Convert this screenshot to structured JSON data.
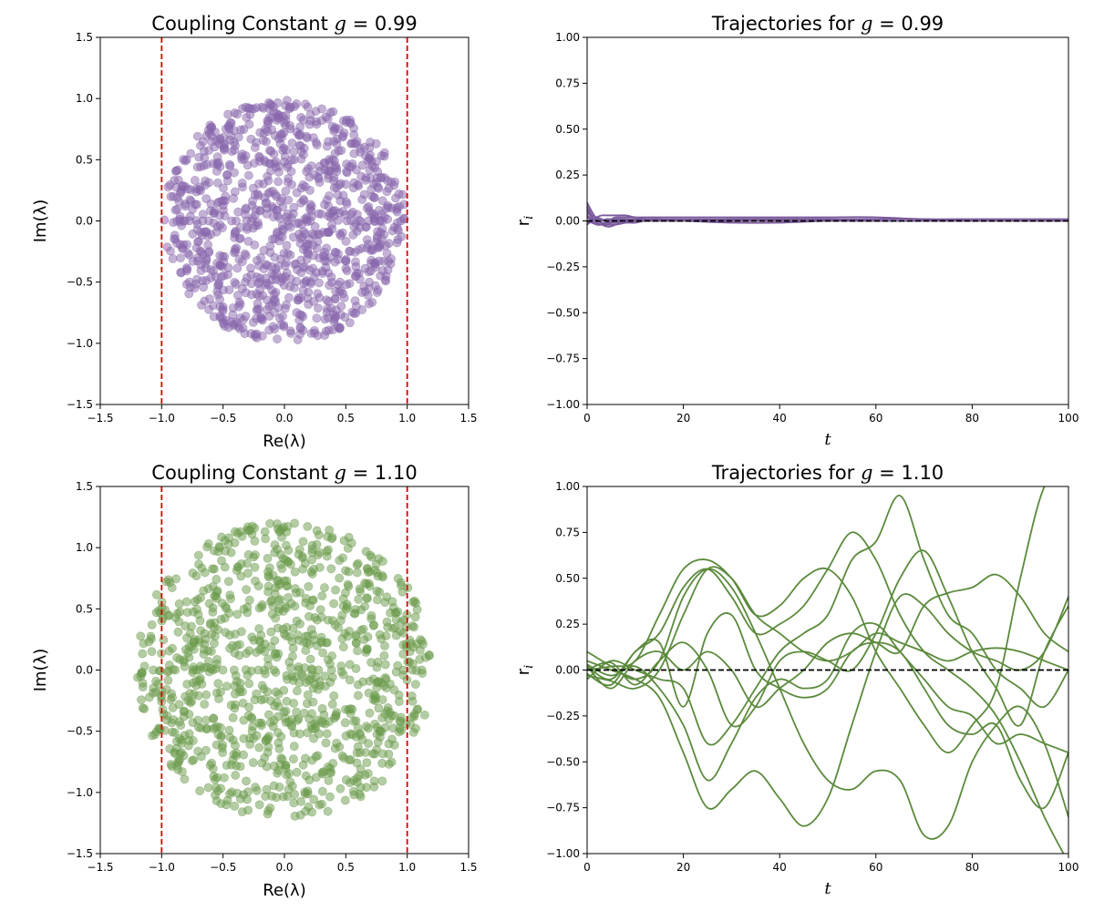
{
  "chart_data": [
    {
      "type": "scatter",
      "title_prefix": "Coupling Constant ",
      "title_var": "g",
      "title_eq": " = ",
      "title_value": "0.99",
      "xlabel": "Re(λ)",
      "ylabel": "Im(λ)",
      "xlim": [
        -1.5,
        1.5
      ],
      "ylim": [
        -1.5,
        1.5
      ],
      "xticks": [
        -1.5,
        -1.0,
        -0.5,
        0.0,
        0.5,
        1.0,
        1.5
      ],
      "yticks": [
        -1.5,
        -1.0,
        -0.5,
        0.0,
        0.5,
        1.0,
        1.5
      ],
      "xtick_labels": [
        "−1.5",
        "−1.0",
        "−0.5",
        "0.0",
        "0.5",
        "1.0",
        "1.5"
      ],
      "ytick_labels": [
        "−1.5",
        "−1.0",
        "−0.5",
        "0.0",
        "0.5",
        "1.0",
        "1.5"
      ],
      "point_color": "#8766ac",
      "point_count": 1000,
      "disk_radius": 0.99,
      "reference_lines_x": [
        -1.0,
        1.0
      ],
      "reference_line_color": "#dd0000",
      "grid": false
    },
    {
      "type": "line",
      "title_prefix": "Trajectories for ",
      "title_var": "g",
      "title_eq": " = ",
      "title_value": "0.99",
      "xlabel": "t",
      "ylabel": "r",
      "ylabel_sub": "i",
      "xlim": [
        0,
        100
      ],
      "ylim": [
        -1.0,
        1.0
      ],
      "xticks": [
        0,
        20,
        40,
        60,
        80,
        100
      ],
      "yticks": [
        -1.0,
        -0.75,
        -0.5,
        -0.25,
        0.0,
        0.25,
        0.5,
        0.75,
        1.0
      ],
      "xtick_labels": [
        "0",
        "20",
        "40",
        "60",
        "80",
        "100"
      ],
      "ytick_labels": [
        "−1.00",
        "−0.75",
        "−0.50",
        "−0.25",
        "0.00",
        "0.25",
        "0.50",
        "0.75",
        "1.00"
      ],
      "line_color": "#7a5a9c",
      "baseline": 0.0,
      "baseline_color": "#000000",
      "x": [
        0,
        1,
        2,
        3,
        4,
        5,
        6,
        8,
        10,
        12,
        15,
        20,
        30,
        40,
        50,
        60,
        70,
        80,
        90,
        100
      ],
      "series": [
        {
          "values": [
            0.1,
            0.05,
            0.01,
            -0.01,
            -0.01,
            0.0,
            0.01,
            0.01,
            0.0,
            0.0,
            0.0,
            0.0,
            0.0,
            0.0,
            0.0,
            0.0,
            0.0,
            0.0,
            0.0,
            0.0
          ]
        },
        {
          "values": [
            0.08,
            0.03,
            -0.01,
            -0.02,
            -0.03,
            -0.03,
            -0.02,
            -0.01,
            0.0,
            0.0,
            0.0,
            0.0,
            0.0,
            0.0,
            0.0,
            0.0,
            0.0,
            0.0,
            0.0,
            0.0
          ]
        },
        {
          "values": [
            0.05,
            0.02,
            0.0,
            -0.01,
            -0.02,
            -0.02,
            -0.02,
            -0.01,
            -0.01,
            0.0,
            0.0,
            0.0,
            -0.01,
            -0.01,
            0.0,
            0.0,
            0.0,
            0.0,
            0.0,
            0.0
          ]
        },
        {
          "values": [
            -0.02,
            0.0,
            0.02,
            0.03,
            0.03,
            0.03,
            0.03,
            0.03,
            0.02,
            0.02,
            0.02,
            0.02,
            0.02,
            0.02,
            0.02,
            0.02,
            0.01,
            0.01,
            0.01,
            0.01
          ]
        },
        {
          "values": [
            0.03,
            0.01,
            0.0,
            0.0,
            0.01,
            0.01,
            0.02,
            0.02,
            0.02,
            0.01,
            0.01,
            0.0,
            0.01,
            0.01,
            0.01,
            0.01,
            0.01,
            0.0,
            0.0,
            0.0
          ]
        },
        {
          "values": [
            0.06,
            0.02,
            -0.01,
            -0.02,
            -0.02,
            -0.01,
            0.0,
            0.01,
            0.01,
            0.01,
            0.01,
            0.01,
            0.01,
            0.01,
            0.01,
            0.0,
            0.0,
            0.0,
            0.0,
            0.0
          ]
        },
        {
          "values": [
            -0.01,
            0.0,
            0.01,
            0.01,
            0.0,
            -0.01,
            -0.01,
            0.0,
            0.0,
            0.0,
            0.0,
            0.0,
            0.0,
            0.0,
            0.0,
            0.0,
            0.0,
            0.0,
            0.0,
            0.0
          ]
        },
        {
          "values": [
            0.02,
            0.0,
            -0.02,
            -0.02,
            -0.02,
            -0.01,
            0.0,
            0.0,
            0.0,
            0.0,
            0.0,
            0.0,
            0.0,
            0.0,
            0.0,
            0.0,
            0.0,
            0.0,
            0.0,
            0.0
          ]
        },
        {
          "values": [
            0.04,
            0.03,
            0.02,
            0.01,
            0.0,
            0.0,
            0.0,
            0.0,
            0.0,
            0.0,
            0.0,
            0.0,
            0.0,
            0.0,
            0.0,
            0.0,
            0.0,
            0.0,
            0.0,
            0.0
          ]
        },
        {
          "values": [
            0.0,
            -0.01,
            -0.02,
            -0.02,
            -0.01,
            0.0,
            0.01,
            0.01,
            0.01,
            0.0,
            0.0,
            0.0,
            0.0,
            0.0,
            0.0,
            0.0,
            0.0,
            0.0,
            0.0,
            0.0
          ]
        }
      ],
      "grid": false
    },
    {
      "type": "scatter",
      "title_prefix": "Coupling Constant ",
      "title_var": "g",
      "title_eq": " = ",
      "title_value": "1.10",
      "xlabel": "Re(λ)",
      "ylabel": "Im(λ)",
      "xlim": [
        -1.5,
        1.5
      ],
      "ylim": [
        -1.5,
        1.5
      ],
      "xticks": [
        -1.5,
        -1.0,
        -0.5,
        0.0,
        0.5,
        1.0,
        1.5
      ],
      "yticks": [
        -1.5,
        -1.0,
        -0.5,
        0.0,
        0.5,
        1.0,
        1.5
      ],
      "xtick_labels": [
        "−1.5",
        "−1.0",
        "−0.5",
        "0.0",
        "0.5",
        "1.0",
        "1.5"
      ],
      "ytick_labels": [
        "−1.5",
        "−1.0",
        "−0.5",
        "0.0",
        "0.5",
        "1.0",
        "1.5"
      ],
      "point_color": "#6a9a4a",
      "point_count": 1000,
      "disk_radius": 1.21,
      "reference_lines_x": [
        -1.0,
        1.0
      ],
      "reference_line_color": "#dd0000",
      "grid": false
    },
    {
      "type": "line",
      "title_prefix": "Trajectories for ",
      "title_var": "g",
      "title_eq": " = ",
      "title_value": "1.10",
      "xlabel": "t",
      "ylabel": "r",
      "ylabel_sub": "i",
      "xlim": [
        0,
        100
      ],
      "ylim": [
        -1.0,
        1.0
      ],
      "xticks": [
        0,
        20,
        40,
        60,
        80,
        100
      ],
      "yticks": [
        -1.0,
        -0.75,
        -0.5,
        -0.25,
        0.0,
        0.25,
        0.5,
        0.75,
        1.0
      ],
      "xtick_labels": [
        "0",
        "20",
        "40",
        "60",
        "80",
        "100"
      ],
      "ytick_labels": [
        "−1.00",
        "−0.75",
        "−0.50",
        "−0.25",
        "0.00",
        "0.25",
        "0.50",
        "0.75",
        "1.00"
      ],
      "line_color": "#5b8a3c",
      "baseline": 0.0,
      "baseline_color": "#000000",
      "x": [
        0,
        5,
        10,
        15,
        20,
        25,
        30,
        35,
        40,
        45,
        50,
        55,
        60,
        65,
        70,
        75,
        80,
        85,
        90,
        95,
        100
      ],
      "series": [
        {
          "values": [
            0.02,
            -0.05,
            0.1,
            0.2,
            0.45,
            0.55,
            0.4,
            0.2,
            0.25,
            0.35,
            0.55,
            0.75,
            0.6,
            0.3,
            0.1,
            0.0,
            -0.1,
            -0.25,
            -0.5,
            -0.8,
            -1.05
          ]
        },
        {
          "values": [
            0.05,
            0.0,
            -0.05,
            -0.15,
            -0.45,
            -0.75,
            -0.65,
            -0.55,
            -0.7,
            -0.85,
            -0.7,
            -0.3,
            0.1,
            0.4,
            0.35,
            0.2,
            0.1,
            0.05,
            0.0,
            0.1,
            0.4
          ]
        },
        {
          "values": [
            0.0,
            0.02,
            0.05,
            0.3,
            0.55,
            0.6,
            0.5,
            0.3,
            0.35,
            0.5,
            0.55,
            0.4,
            0.1,
            -0.1,
            -0.3,
            -0.45,
            -0.3,
            -0.1,
            0.5,
            1.0,
            1.1
          ]
        },
        {
          "values": [
            0.1,
            0.02,
            -0.05,
            0.05,
            0.4,
            0.55,
            0.45,
            0.2,
            -0.1,
            -0.4,
            -0.6,
            -0.65,
            -0.55,
            -0.6,
            -0.9,
            -0.85,
            -0.5,
            -0.3,
            -0.2,
            -0.4,
            -0.8
          ]
        },
        {
          "values": [
            -0.02,
            -0.08,
            0.1,
            0.15,
            -0.2,
            0.2,
            0.3,
            0.0,
            -0.1,
            -0.15,
            -0.1,
            0.1,
            0.15,
            0.1,
            -0.1,
            -0.3,
            -0.35,
            -0.3,
            -0.6,
            -0.75,
            -0.45
          ]
        },
        {
          "values": [
            0.03,
            -0.03,
            0.02,
            -0.1,
            -0.3,
            -0.6,
            -0.4,
            -0.15,
            -0.05,
            -0.1,
            -0.05,
            0.2,
            0.25,
            0.1,
            -0.05,
            -0.2,
            -0.25,
            -0.4,
            -0.35,
            -0.4,
            -0.45
          ]
        },
        {
          "values": [
            0.0,
            0.04,
            -0.08,
            0.05,
            0.15,
            0.0,
            -0.3,
            -0.2,
            0.05,
            0.1,
            0.05,
            0.0,
            0.2,
            0.5,
            0.65,
            0.4,
            0.1,
            -0.1,
            -0.3,
            0.1,
            0.35
          ]
        },
        {
          "values": [
            -0.05,
            0.05,
            0.0,
            -0.05,
            -0.1,
            -0.4,
            -0.3,
            -0.1,
            0.1,
            0.2,
            0.3,
            0.6,
            0.7,
            0.95,
            0.6,
            0.3,
            0.2,
            0.0,
            -0.1,
            -0.2,
            0.0
          ]
        },
        {
          "values": [
            0.02,
            -0.1,
            0.05,
            0.1,
            0.0,
            0.1,
            0.0,
            -0.2,
            -0.1,
            0.0,
            0.15,
            0.2,
            0.15,
            0.1,
            0.35,
            0.42,
            0.45,
            0.52,
            0.4,
            0.2,
            0.1
          ]
        },
        {
          "values": [
            -0.03,
            -0.06,
            -0.1,
            0.0,
            0.3,
            0.55,
            0.5,
            0.3,
            0.2,
            0.1,
            0.05,
            0.1,
            0.2,
            0.15,
            0.1,
            0.05,
            0.1,
            0.12,
            0.1,
            0.05,
            0.0
          ]
        }
      ],
      "grid": false
    }
  ]
}
